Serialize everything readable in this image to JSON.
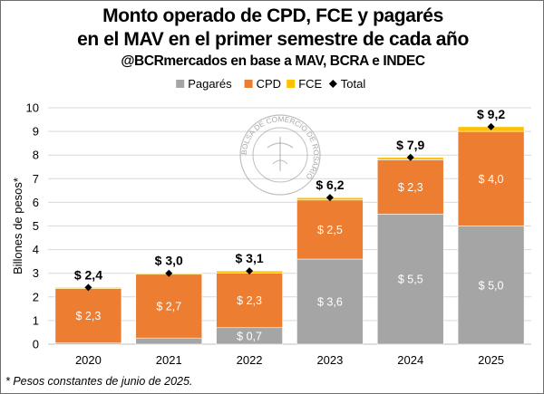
{
  "titles": {
    "line1": "Monto operado de CPD, FCE y pagarés",
    "line2": "en el MAV en el primer semestre de cada año",
    "source": "@BCRmercados en base a MAV, BCRA e INDEC"
  },
  "footnote": "* Pesos constantes de junio de 2025.",
  "watermark": {
    "text": "BOLSA DE COMERCIO DE ROSARIO",
    "color": "#8a8a8a"
  },
  "chart_data": {
    "type": "bar",
    "stacked": true,
    "categories": [
      "2020",
      "2021",
      "2022",
      "2023",
      "2024",
      "2025"
    ],
    "series": [
      {
        "name": "Pagarés",
        "color": "#a5a5a5",
        "values": [
          0.05,
          0.26,
          0.7,
          3.6,
          5.5,
          5.0
        ],
        "labels": [
          "",
          "",
          "$ 0,7",
          "$ 3,6",
          "$ 5,5",
          "$ 5,0"
        ]
      },
      {
        "name": "CPD",
        "color": "#ed7d31",
        "values": [
          2.3,
          2.7,
          2.3,
          2.5,
          2.3,
          4.0
        ],
        "labels": [
          "$ 2,3",
          "$ 2,7",
          "$ 2,3",
          "$ 2,5",
          "$ 2,3",
          "$ 4,0"
        ]
      },
      {
        "name": "FCE",
        "color": "#ffc000",
        "values": [
          0.05,
          0.04,
          0.1,
          0.1,
          0.1,
          0.2
        ],
        "labels": [
          "",
          "",
          "",
          "",
          "",
          ""
        ]
      }
    ],
    "total": {
      "name": "Total",
      "color": "#000000",
      "values": [
        2.4,
        3.0,
        3.1,
        6.2,
        7.9,
        9.2
      ],
      "labels": [
        "$ 2,4",
        "$ 3,0",
        "$ 3,1",
        "$ 6,2",
        "$ 7,9",
        "$ 9,2"
      ]
    },
    "ylabel": "Billones de pesos*",
    "ylim": [
      0,
      10
    ],
    "yticks": [
      0,
      1,
      2,
      3,
      4,
      5,
      6,
      7,
      8,
      9,
      10
    ],
    "grid": true,
    "legend_position": "top"
  }
}
